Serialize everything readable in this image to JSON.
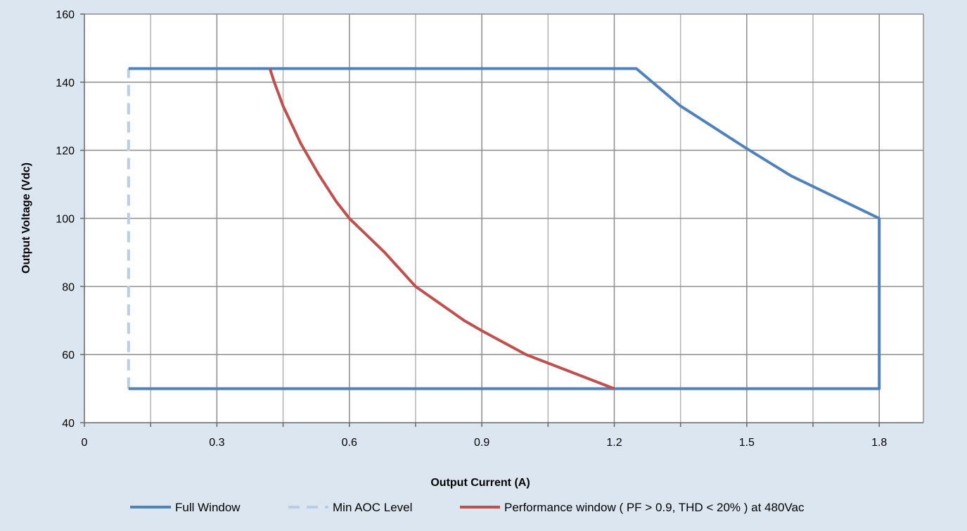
{
  "chart_data": {
    "type": "line",
    "title": "",
    "xlabel": "Output Current (A)",
    "ylabel": "Output Voltage (Vdc)",
    "xlim": [
      0,
      1.9
    ],
    "ylim": [
      40,
      160
    ],
    "x_major_ticks": [
      0,
      0.3,
      0.6,
      0.9,
      1.2,
      1.5,
      1.8
    ],
    "x_tick_labels": [
      "0",
      "0.3",
      "0.6",
      "0.9",
      "1.2",
      "1.5",
      "1.8"
    ],
    "x_minor_gridlines": [
      0.15,
      0.45,
      0.75,
      1.05,
      1.35,
      1.65
    ],
    "y_ticks": [
      40,
      60,
      80,
      100,
      120,
      140,
      160
    ],
    "y_tick_labels": [
      "40",
      "60",
      "80",
      "100",
      "120",
      "140",
      "160"
    ],
    "grid": true,
    "legend_position": "bottom",
    "series": [
      {
        "name": "Full Window",
        "color": "#4f81bd",
        "style": "solid",
        "points": [
          [
            0.1,
            144
          ],
          [
            1.25,
            144
          ],
          [
            1.35,
            133
          ],
          [
            1.44,
            125.5
          ],
          [
            1.5,
            120.5
          ],
          [
            1.6,
            112.5
          ],
          [
            1.8,
            100
          ],
          [
            1.8,
            50
          ],
          [
            0.1,
            50
          ]
        ]
      },
      {
        "name": "Min AOC Level",
        "color": "#b9cde5",
        "style": "dashed",
        "points": [
          [
            0.1,
            50
          ],
          [
            0.1,
            144
          ]
        ]
      },
      {
        "name": "Performance window ( PF > 0.9, THD < 20% ) at 480Vac",
        "color": "#c0504d",
        "style": "solid",
        "points": [
          [
            0.42,
            144
          ],
          [
            0.43,
            140
          ],
          [
            0.45,
            133
          ],
          [
            0.49,
            122
          ],
          [
            0.53,
            113
          ],
          [
            0.57,
            105
          ],
          [
            0.6,
            100
          ],
          [
            0.68,
            90
          ],
          [
            0.75,
            80
          ],
          [
            0.86,
            70
          ],
          [
            0.9,
            67
          ],
          [
            1.0,
            60
          ],
          [
            1.1,
            55
          ],
          [
            1.2,
            50
          ]
        ]
      }
    ]
  }
}
